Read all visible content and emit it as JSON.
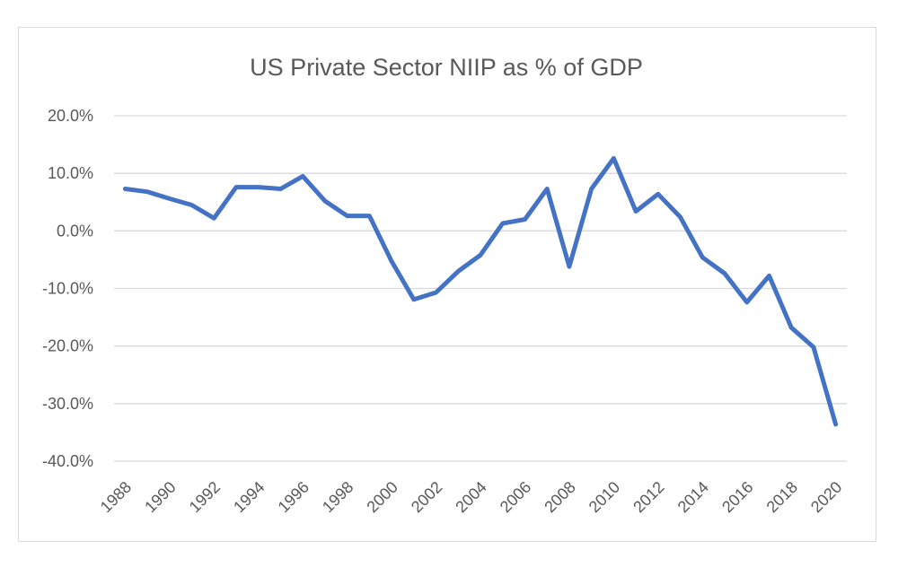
{
  "chart_data": {
    "type": "line",
    "title": "US Private Sector NIIP as % of GDP",
    "xlabel": "",
    "ylabel": "",
    "x": [
      1988,
      1989,
      1990,
      1991,
      1992,
      1993,
      1994,
      1995,
      1996,
      1997,
      1998,
      1999,
      2000,
      2001,
      2002,
      2003,
      2004,
      2005,
      2006,
      2007,
      2008,
      2009,
      2010,
      2011,
      2012,
      2013,
      2014,
      2015,
      2016,
      2017,
      2018,
      2019,
      2020
    ],
    "x_tick_labels": [
      "1988",
      "1990",
      "1992",
      "1994",
      "1996",
      "1998",
      "2000",
      "2002",
      "2004",
      "2006",
      "2008",
      "2010",
      "2012",
      "2014",
      "2016",
      "2018",
      "2020"
    ],
    "y_tick_labels": [
      "20.0%",
      "10.0%",
      "0.0%",
      "-10.0%",
      "-20.0%",
      "-30.0%",
      "-40.0%"
    ],
    "ylim": [
      -40,
      20
    ],
    "y_step": 10,
    "grid": true,
    "legend": "none",
    "series": [
      {
        "color": "#4472c4",
        "values": [
          7.3,
          6.8,
          5.6,
          4.5,
          2.2,
          7.6,
          7.6,
          7.3,
          9.5,
          5.2,
          2.6,
          2.6,
          -5.3,
          -11.9,
          -10.7,
          -7.0,
          -4.2,
          1.3,
          2.0,
          7.3,
          -6.2,
          7.3,
          12.6,
          3.4,
          6.4,
          2.4,
          -4.6,
          -7.4,
          -12.4,
          -7.8,
          -16.8,
          -20.2,
          -33.6
        ]
      }
    ]
  }
}
